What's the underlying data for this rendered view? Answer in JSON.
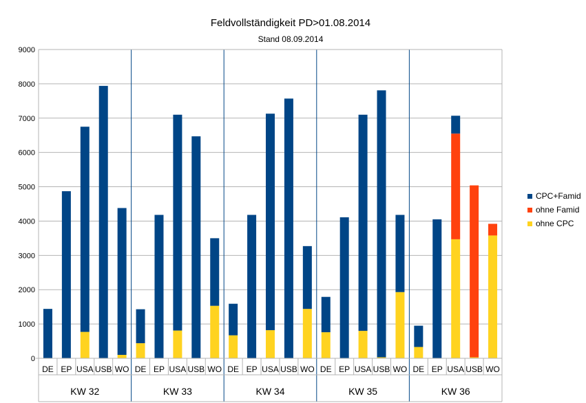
{
  "chart_data": {
    "type": "bar",
    "stacked": true,
    "title": "Feldvollständigkeit PD>01.08.2014",
    "subtitle": "Stand 08.09.2014",
    "xlabel": "",
    "ylabel": "",
    "ylim": [
      0,
      9000
    ],
    "yticks": [
      "0",
      "1000",
      "2000",
      "3000",
      "4000",
      "5000",
      "6000",
      "7000",
      "8000",
      "9000"
    ],
    "grid": true,
    "legend_position": "right",
    "groups": [
      {
        "label": "KW 32",
        "categories": [
          "DE",
          "EP",
          "USA",
          "USB",
          "WO"
        ]
      },
      {
        "label": "KW 33",
        "categories": [
          "DE",
          "EP",
          "USA",
          "USB",
          "WO"
        ]
      },
      {
        "label": "KW 34",
        "categories": [
          "DE",
          "EP",
          "USA",
          "USB",
          "WO"
        ]
      },
      {
        "label": "KW 35",
        "categories": [
          "DE",
          "EP",
          "USA",
          "USB",
          "WO"
        ]
      },
      {
        "label": "KW 36",
        "categories": [
          "DE",
          "EP",
          "USA",
          "USB",
          "WO"
        ]
      }
    ],
    "series": [
      {
        "name": "ohne CPC",
        "color": "#ffd320",
        "values": [
          0,
          0,
          770,
          0,
          100,
          440,
          0,
          810,
          0,
          1530,
          670,
          0,
          820,
          0,
          1440,
          760,
          0,
          800,
          30,
          1930,
          330,
          0,
          3470,
          30,
          3580
        ]
      },
      {
        "name": "ohne Famid",
        "color": "#ff420e",
        "values": [
          0,
          0,
          0,
          0,
          0,
          0,
          0,
          0,
          0,
          0,
          0,
          0,
          0,
          0,
          0,
          0,
          0,
          0,
          0,
          0,
          0,
          0,
          3080,
          5010,
          340
        ]
      },
      {
        "name": "CPC+Famid",
        "color": "#004586",
        "values": [
          1440,
          4870,
          5980,
          7940,
          4280,
          990,
          4180,
          6290,
          6470,
          1970,
          920,
          4180,
          6310,
          7570,
          1830,
          1030,
          4110,
          6300,
          7780,
          2250,
          620,
          4050,
          520,
          0,
          0
        ]
      }
    ]
  }
}
